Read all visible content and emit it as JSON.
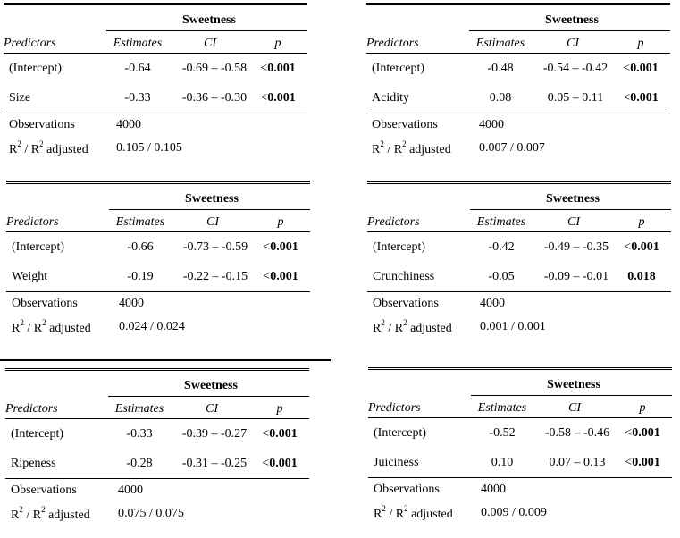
{
  "tables": [
    {
      "dependent_variable": "Sweetness",
      "headers": {
        "predictors": "Predictors",
        "estimates": "Estimates",
        "ci": "CI",
        "p": "p"
      },
      "rows": [
        {
          "predictor": "(Intercept)",
          "estimate": "-0.64",
          "ci": "-0.69 – -0.58",
          "p_prefix": "<",
          "p": "0.001"
        },
        {
          "predictor": "Size",
          "estimate": "-0.33",
          "ci": "-0.36 – -0.30",
          "p_prefix": "<",
          "p": "0.001"
        }
      ],
      "observations_label": "Observations",
      "observations": "4000",
      "r2_label_a": "R",
      "r2_sup_a": "2",
      "r2_label_b": " / R",
      "r2_sup_b": "2",
      "r2_label_c": " adjusted",
      "r2_value": "0.105 / 0.105"
    },
    {
      "dependent_variable": "Sweetness",
      "headers": {
        "predictors": "Predictors",
        "estimates": "Estimates",
        "ci": "CI",
        "p": "p"
      },
      "rows": [
        {
          "predictor": "(Intercept)",
          "estimate": "-0.48",
          "ci": "-0.54 – -0.42",
          "p_prefix": "<",
          "p": "0.001"
        },
        {
          "predictor": "Acidity",
          "estimate": "0.08",
          "ci": "0.05 – 0.11",
          "p_prefix": "<",
          "p": "0.001"
        }
      ],
      "observations_label": "Observations",
      "observations": "4000",
      "r2_label_a": "R",
      "r2_sup_a": "2",
      "r2_label_b": " / R",
      "r2_sup_b": "2",
      "r2_label_c": " adjusted",
      "r2_value": "0.007 / 0.007"
    },
    {
      "dependent_variable": "Sweetness",
      "headers": {
        "predictors": "Predictors",
        "estimates": "Estimates",
        "ci": "CI",
        "p": "p"
      },
      "rows": [
        {
          "predictor": "(Intercept)",
          "estimate": "-0.66",
          "ci": "-0.73 – -0.59",
          "p_prefix": "<",
          "p": "0.001"
        },
        {
          "predictor": "Weight",
          "estimate": "-0.19",
          "ci": "-0.22 – -0.15",
          "p_prefix": "<",
          "p": "0.001"
        }
      ],
      "observations_label": "Observations",
      "observations": "4000",
      "r2_label_a": "R",
      "r2_sup_a": "2",
      "r2_label_b": " / R",
      "r2_sup_b": "2",
      "r2_label_c": " adjusted",
      "r2_value": "0.024 / 0.024"
    },
    {
      "dependent_variable": "Sweetness",
      "headers": {
        "predictors": "Predictors",
        "estimates": "Estimates",
        "ci": "CI",
        "p": "p"
      },
      "rows": [
        {
          "predictor": "(Intercept)",
          "estimate": "-0.42",
          "ci": "-0.49 – -0.35",
          "p_prefix": "<",
          "p": "0.001"
        },
        {
          "predictor": "Crunchiness",
          "estimate": "-0.05",
          "ci": "-0.09 – -0.01",
          "p_prefix": "",
          "p": "0.018"
        }
      ],
      "observations_label": "Observations",
      "observations": "4000",
      "r2_label_a": "R",
      "r2_sup_a": "2",
      "r2_label_b": " / R",
      "r2_sup_b": "2",
      "r2_label_c": " adjusted",
      "r2_value": "0.001 / 0.001"
    },
    {
      "dependent_variable": "Sweetness",
      "headers": {
        "predictors": "Predictors",
        "estimates": "Estimates",
        "ci": "CI",
        "p": "p"
      },
      "rows": [
        {
          "predictor": "(Intercept)",
          "estimate": "-0.33",
          "ci": "-0.39 – -0.27",
          "p_prefix": "<",
          "p": "0.001"
        },
        {
          "predictor": "Ripeness",
          "estimate": "-0.28",
          "ci": "-0.31 – -0.25",
          "p_prefix": "<",
          "p": "0.001"
        }
      ],
      "observations_label": "Observations",
      "observations": "4000",
      "r2_label_a": "R",
      "r2_sup_a": "2",
      "r2_label_b": " / R",
      "r2_sup_b": "2",
      "r2_label_c": " adjusted",
      "r2_value": "0.075 / 0.075"
    },
    {
      "dependent_variable": "Sweetness",
      "headers": {
        "predictors": "Predictors",
        "estimates": "Estimates",
        "ci": "CI",
        "p": "p"
      },
      "rows": [
        {
          "predictor": "(Intercept)",
          "estimate": "-0.52",
          "ci": "-0.58 – -0.46",
          "p_prefix": "<",
          "p": "0.001"
        },
        {
          "predictor": "Juiciness",
          "estimate": "0.10",
          "ci": "0.07 – 0.13",
          "p_prefix": "<",
          "p": "0.001"
        }
      ],
      "observations_label": "Observations",
      "observations": "4000",
      "r2_label_a": "R",
      "r2_sup_a": "2",
      "r2_label_b": " / R",
      "r2_sup_b": "2",
      "r2_label_c": " adjusted",
      "r2_value": "0.009 / 0.009"
    }
  ]
}
